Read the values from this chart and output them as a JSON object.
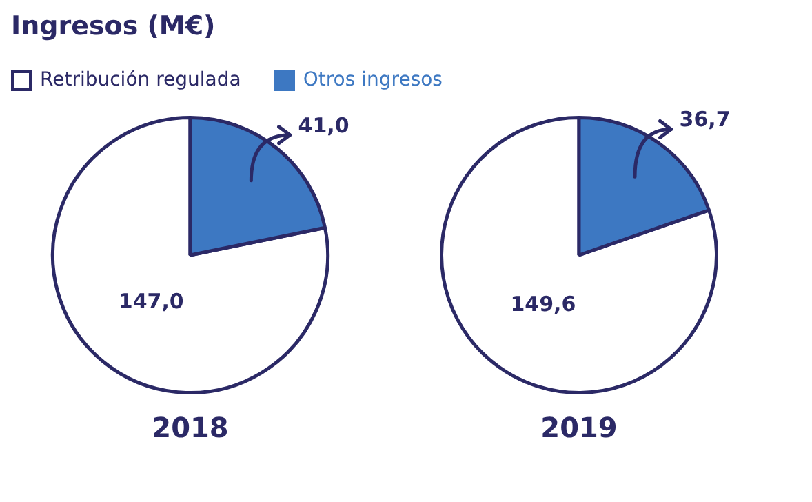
{
  "chart_data": [
    {
      "type": "pie",
      "title": "2018",
      "annotations": [
        "Ingresos (M€)"
      ],
      "legend": "top",
      "categories": [
        "Retribución regulada",
        "Otros ingresos"
      ],
      "values": [
        147.0,
        41.0
      ],
      "value_labels": [
        "147,0",
        "41,0"
      ],
      "colors": [
        "#ffffff",
        "#3d78c2"
      ]
    },
    {
      "type": "pie",
      "title": "2019",
      "categories": [
        null,
        null
      ],
      "values": [
        149.6,
        36.7
      ],
      "value_labels": [
        "149,6",
        "36,7"
      ],
      "colors": [
        "#ffffff",
        "#3d78c2"
      ]
    }
  ]
}
